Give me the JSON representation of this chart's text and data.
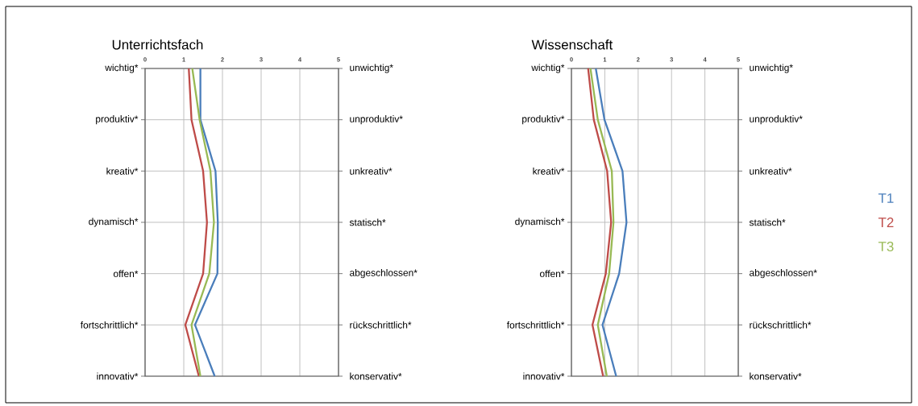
{
  "chart_data": [
    {
      "type": "line",
      "orientation": "horizontal",
      "title": "Unterrichtsfach",
      "categories": [
        "wichtig*",
        "produktiv*",
        "kreativ*",
        "dynamisch*",
        "offen*",
        "fortschrittlich*",
        "innovativ*"
      ],
      "y2_categories": [
        "unwichtig*",
        "unproduktiv*",
        "unkreativ*",
        "statisch*",
        "abgeschlossen*",
        "rückschrittlich*",
        "konservativ*"
      ],
      "xlim": [
        0,
        5
      ],
      "xticks": [
        0,
        1,
        2,
        3,
        4,
        5
      ],
      "grid": true,
      "series": [
        {
          "color": "#4a7ebb",
          "values": [
            1.43,
            1.43,
            1.82,
            1.88,
            1.87,
            1.29,
            1.8
          ]
        },
        {
          "color": "#be4b48",
          "values": [
            1.13,
            1.2,
            1.5,
            1.6,
            1.5,
            1.04,
            1.39
          ]
        },
        {
          "color": "#98b954",
          "values": [
            1.22,
            1.41,
            1.69,
            1.78,
            1.66,
            1.2,
            1.43
          ]
        }
      ]
    },
    {
      "type": "line",
      "orientation": "horizontal",
      "title": "Wissenschaft",
      "categories": [
        "wichtig*",
        "produktiv*",
        "kreativ*",
        "dynamisch*",
        "offen*",
        "fortschrittlich*",
        "innovativ*"
      ],
      "y2_categories": [
        "unwichtig*",
        "unproduktiv*",
        "unkreativ*",
        "statisch*",
        "abgeschlossen*",
        "rückschrittlich*",
        "konservativ*"
      ],
      "xlim": [
        0,
        5
      ],
      "xticks": [
        0,
        1,
        2,
        3,
        4,
        5
      ],
      "grid": true,
      "legend": "right",
      "series": [
        {
          "name": "T1",
          "color": "#4a7ebb",
          "values": [
            0.73,
            0.99,
            1.53,
            1.65,
            1.43,
            0.93,
            1.34
          ]
        },
        {
          "name": "T2",
          "color": "#be4b48",
          "values": [
            0.5,
            0.67,
            1.07,
            1.19,
            1.03,
            0.63,
            0.95
          ]
        },
        {
          "name": "T3",
          "color": "#98b954",
          "values": [
            0.57,
            0.79,
            1.21,
            1.26,
            1.13,
            0.79,
            1.06
          ]
        }
      ]
    }
  ]
}
